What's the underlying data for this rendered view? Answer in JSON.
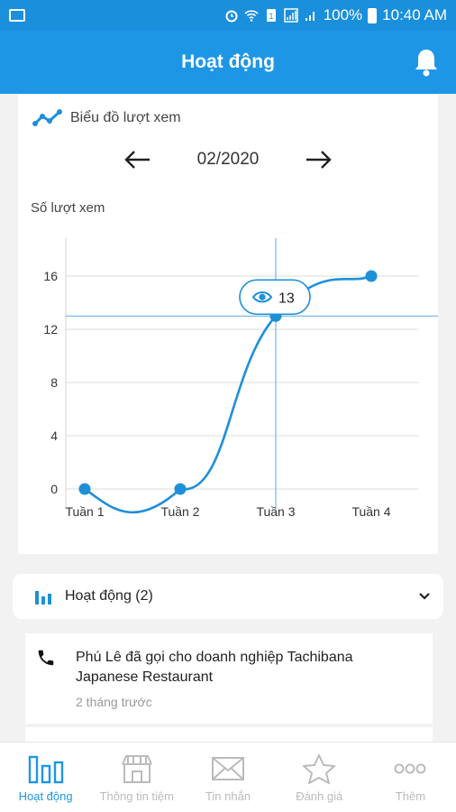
{
  "status_bar": {
    "battery": "100%",
    "time": "10:40 AM"
  },
  "header": {
    "title": "Hoạt động"
  },
  "chart_card": {
    "title": "Biểu đồ lượt xem",
    "month": "02/2020",
    "ylabel": "Số lượt xem",
    "tooltip_value": "13"
  },
  "chart_data": {
    "type": "line",
    "categories": [
      "Tuần 1",
      "Tuần 2",
      "Tuần 3",
      "Tuần 4"
    ],
    "values": [
      0,
      0,
      13,
      16
    ],
    "ylabel": "Số lượt xem",
    "ylim": [
      0,
      16
    ],
    "yticks": [
      "0",
      "4",
      "8",
      "12",
      "16"
    ],
    "grid": true,
    "highlight_index": 2,
    "colors": {
      "line": "#1e90d8",
      "grid": "#dcdcdc",
      "crosshair": "#5aa9dd"
    }
  },
  "activity": {
    "label": "Hoạt động (2)"
  },
  "items": [
    {
      "text": "Phú Lê đã gọi cho doanh nghiệp Tachibana Japanese Restaurant",
      "time": "2 tháng trước"
    }
  ],
  "bottom_nav": [
    {
      "label": "Hoạt động",
      "icon": "bar-chart-icon",
      "active": true
    },
    {
      "label": "Thông tin tiệm",
      "icon": "store-icon",
      "active": false
    },
    {
      "label": "Tin nhắn",
      "icon": "mail-icon",
      "active": false
    },
    {
      "label": "Đánh giá",
      "icon": "star-icon",
      "active": false
    },
    {
      "label": "Thêm",
      "icon": "more-icon",
      "active": false
    }
  ],
  "colors": {
    "primary": "#1e96e6",
    "status_bar": "#1a8fdc",
    "inactive": "#bbbbbb"
  }
}
